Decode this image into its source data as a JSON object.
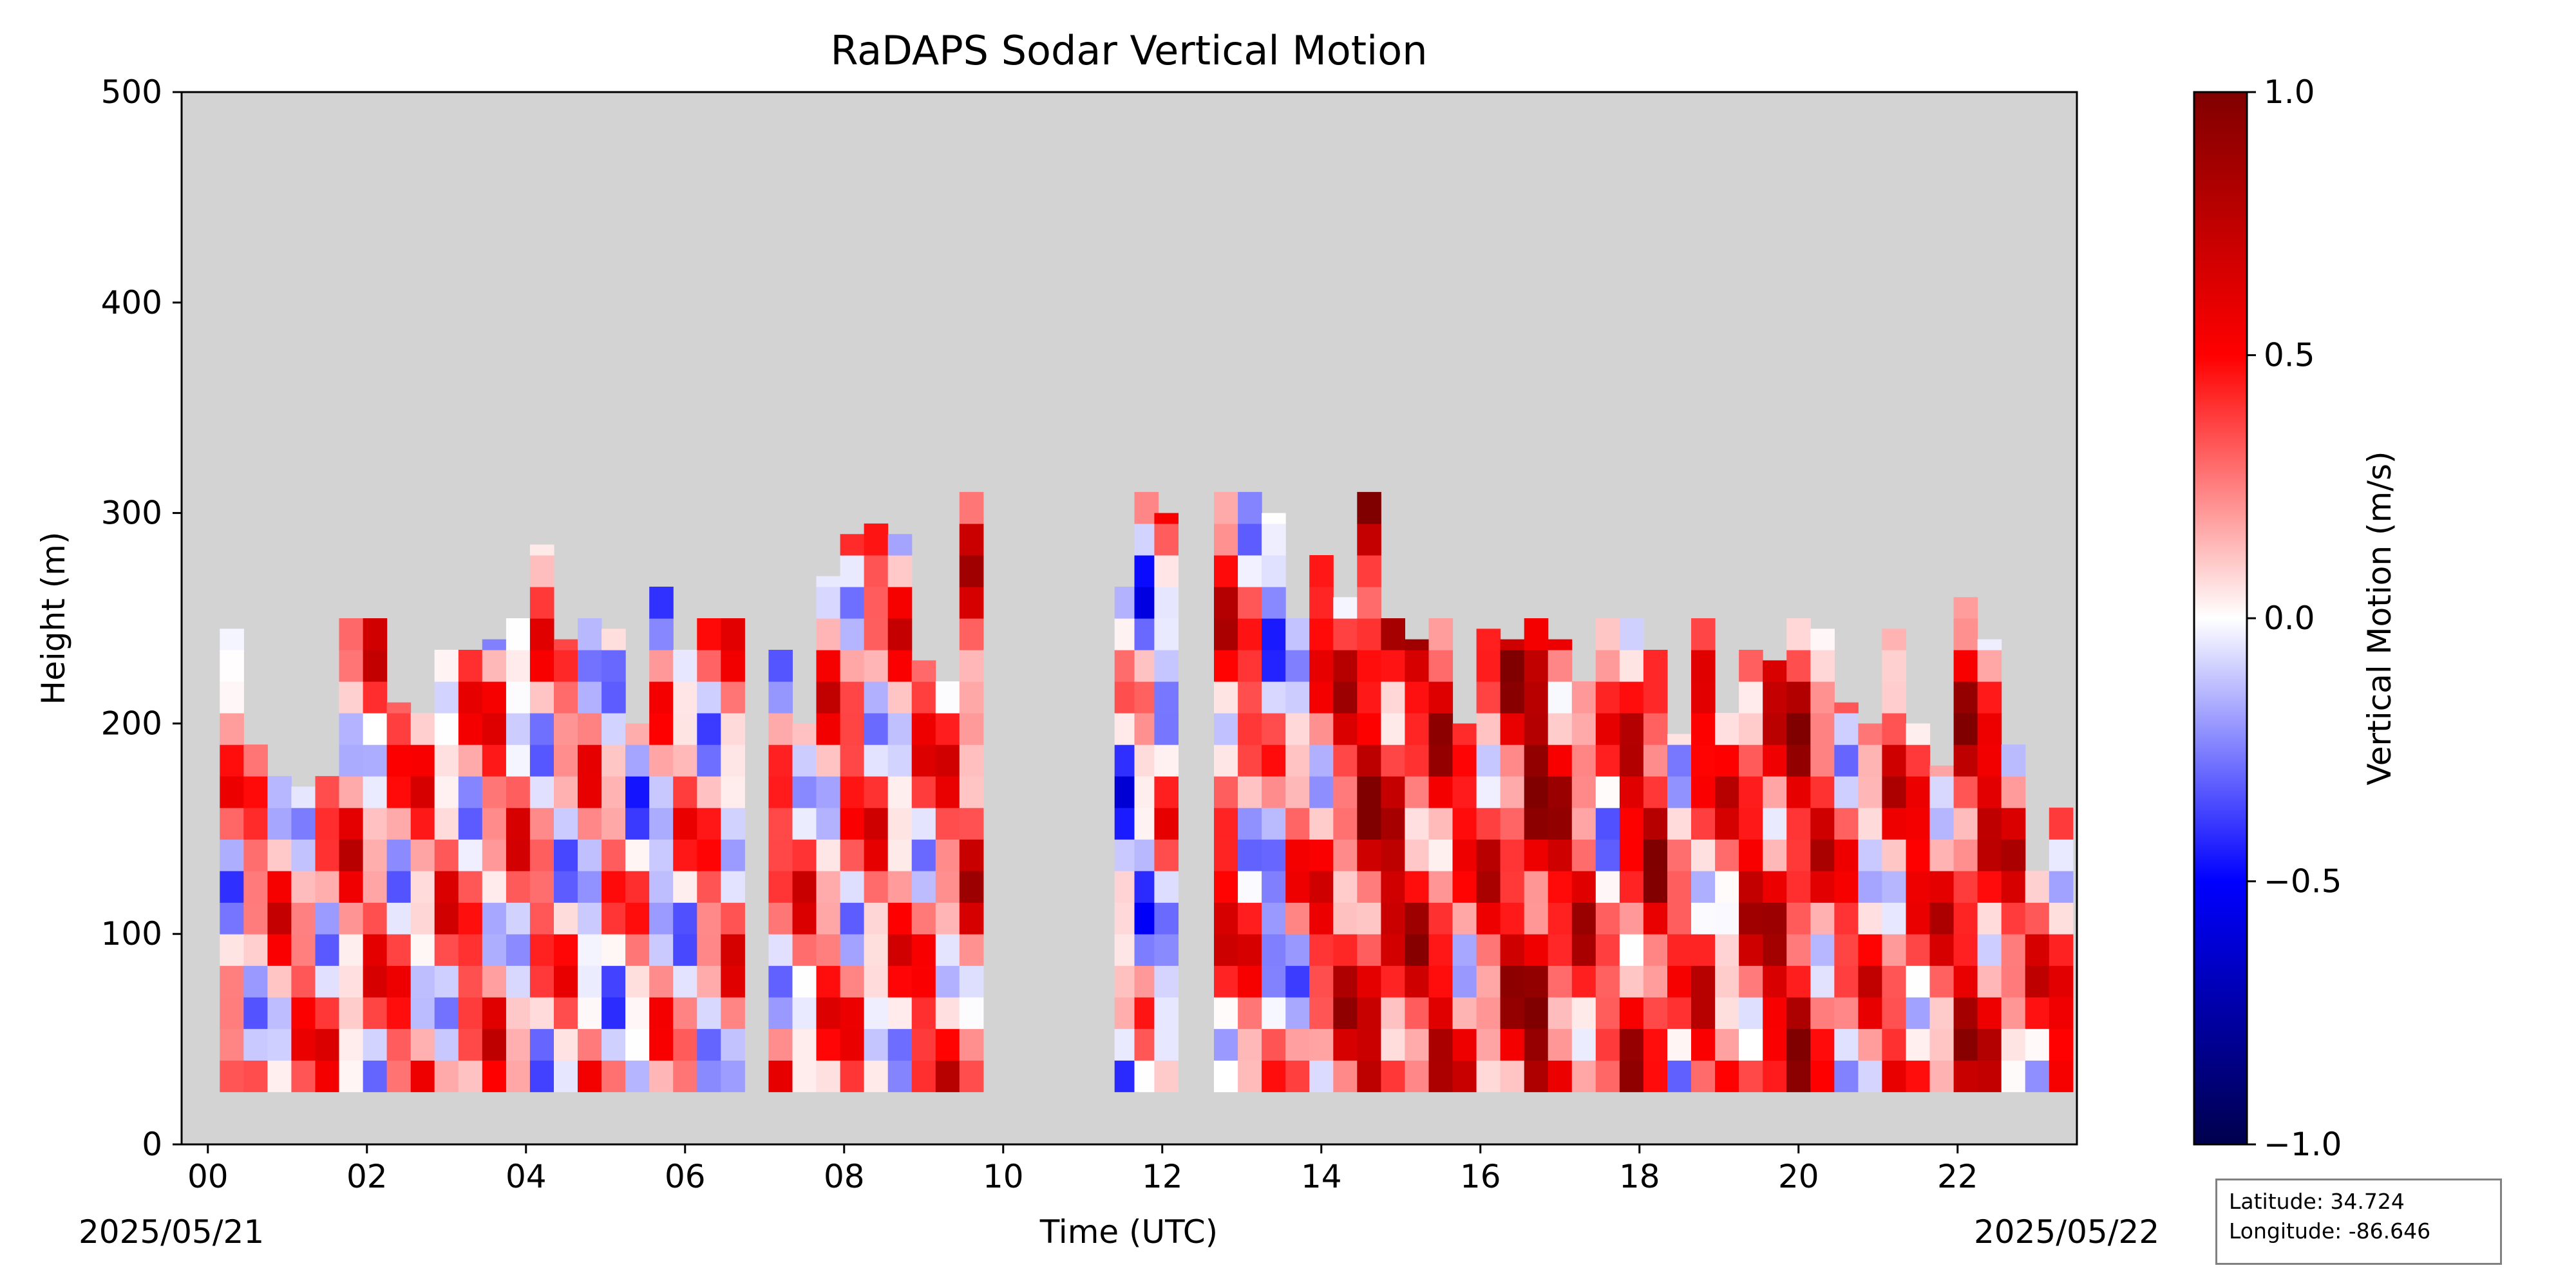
{
  "chart_data": {
    "type": "heatmap",
    "title": "RaDAPS Sodar Vertical Motion",
    "xlabel": "Time (UTC)",
    "ylabel": "Height (m)",
    "xlim": [
      -0.33,
      23.5
    ],
    "ylim": [
      0,
      500
    ],
    "x_ticks": [
      "00",
      "02",
      "04",
      "06",
      "08",
      "10",
      "12",
      "14",
      "16",
      "18",
      "20",
      "22"
    ],
    "y_ticks": [
      "0",
      "100",
      "200",
      "300",
      "400",
      "500"
    ],
    "start_date": "2025/05/21",
    "end_date": "2025/05/22",
    "colorbar": {
      "label": "Vertical Motion (m/s)",
      "range": [
        -1.0,
        1.0
      ],
      "ticks": [
        "−1.0",
        "−0.5",
        "0.0",
        "0.5",
        "1.0"
      ],
      "colormap": "seismic"
    },
    "missing_color": "#d3d3d3",
    "height_min_m": 25,
    "data_gaps_utc": [
      [
        9.8,
        11.5
      ],
      [
        12.1,
        12.6
      ]
    ],
    "profiles": [
      {
        "t": 0.3,
        "top": 245,
        "w_mean": 0.1
      },
      {
        "t": 0.6,
        "top": 190,
        "w_mean": 0.15
      },
      {
        "t": 0.9,
        "top": 175,
        "w_mean": 0.18
      },
      {
        "t": 1.2,
        "top": 170,
        "w_mean": 0.2
      },
      {
        "t": 1.5,
        "top": 175,
        "w_mean": 0.2
      },
      {
        "t": 1.8,
        "top": 250,
        "w_mean": 0.25
      },
      {
        "t": 2.1,
        "top": 250,
        "w_mean": 0.22
      },
      {
        "t": 2.4,
        "top": 210,
        "w_mean": 0.2
      },
      {
        "t": 2.7,
        "top": 205,
        "w_mean": 0.18
      },
      {
        "t": 3.0,
        "top": 235,
        "w_mean": 0.2
      },
      {
        "t": 3.3,
        "top": 235,
        "w_mean": 0.2
      },
      {
        "t": 3.6,
        "top": 240,
        "w_mean": 0.22
      },
      {
        "t": 3.9,
        "top": 250,
        "w_mean": 0.18
      },
      {
        "t": 4.2,
        "top": 285,
        "w_mean": 0.15
      },
      {
        "t": 4.5,
        "top": 240,
        "w_mean": 0.1
      },
      {
        "t": 4.8,
        "top": 250,
        "w_mean": 0.1
      },
      {
        "t": 5.1,
        "top": 245,
        "w_mean": 0.1
      },
      {
        "t": 5.4,
        "top": 200,
        "w_mean": 0.05
      },
      {
        "t": 5.7,
        "top": 265,
        "w_mean": 0.05
      },
      {
        "t": 6.0,
        "top": 235,
        "w_mean": 0.12
      },
      {
        "t": 6.3,
        "top": 250,
        "w_mean": 0.15
      },
      {
        "t": 6.6,
        "top": 250,
        "w_mean": 0.15
      },
      {
        "t": 6.9,
        "top": 0,
        "w_mean": 0
      },
      {
        "t": 7.2,
        "top": 235,
        "w_mean": 0.2
      },
      {
        "t": 7.5,
        "top": 200,
        "w_mean": 0.2
      },
      {
        "t": 7.8,
        "top": 270,
        "w_mean": 0.2
      },
      {
        "t": 8.1,
        "top": 290,
        "w_mean": 0.22
      },
      {
        "t": 8.4,
        "top": 295,
        "w_mean": 0.2
      },
      {
        "t": 8.7,
        "top": 290,
        "w_mean": 0.18
      },
      {
        "t": 9.0,
        "top": 230,
        "w_mean": 0.25
      },
      {
        "t": 9.3,
        "top": 220,
        "w_mean": 0.25
      },
      {
        "t": 9.6,
        "top": 310,
        "w_mean": 0.35
      },
      {
        "t": 11.55,
        "top": 265,
        "w_mean": -0.1
      },
      {
        "t": 11.8,
        "top": 310,
        "w_mean": -0.05
      },
      {
        "t": 12.05,
        "top": 300,
        "w_mean": 0.05
      },
      {
        "t": 12.8,
        "top": 310,
        "w_mean": 0.35
      },
      {
        "t": 13.1,
        "top": 310,
        "w_mean": 0.2
      },
      {
        "t": 13.4,
        "top": 300,
        "w_mean": -0.05
      },
      {
        "t": 13.7,
        "top": 250,
        "w_mean": 0.15
      },
      {
        "t": 14.0,
        "top": 280,
        "w_mean": 0.3
      },
      {
        "t": 14.3,
        "top": 260,
        "w_mean": 0.4
      },
      {
        "t": 14.6,
        "top": 310,
        "w_mean": 0.6
      },
      {
        "t": 14.9,
        "top": 250,
        "w_mean": 0.55
      },
      {
        "t": 15.2,
        "top": 240,
        "w_mean": 0.45
      },
      {
        "t": 15.5,
        "top": 250,
        "w_mean": 0.45
      },
      {
        "t": 15.8,
        "top": 200,
        "w_mean": 0.3
      },
      {
        "t": 16.1,
        "top": 245,
        "w_mean": 0.35
      },
      {
        "t": 16.4,
        "top": 240,
        "w_mean": 0.5
      },
      {
        "t": 16.7,
        "top": 250,
        "w_mean": 0.7
      },
      {
        "t": 17.0,
        "top": 240,
        "w_mean": 0.5
      },
      {
        "t": 17.3,
        "top": 220,
        "w_mean": 0.4
      },
      {
        "t": 17.6,
        "top": 250,
        "w_mean": 0.15
      },
      {
        "t": 17.9,
        "top": 250,
        "w_mean": 0.45
      },
      {
        "t": 18.2,
        "top": 235,
        "w_mean": 0.55
      },
      {
        "t": 18.5,
        "top": 195,
        "w_mean": 0.2
      },
      {
        "t": 18.8,
        "top": 250,
        "w_mean": 0.35
      },
      {
        "t": 19.1,
        "top": 205,
        "w_mean": 0.25
      },
      {
        "t": 19.4,
        "top": 235,
        "w_mean": 0.45
      },
      {
        "t": 19.7,
        "top": 230,
        "w_mean": 0.5
      },
      {
        "t": 20.0,
        "top": 250,
        "w_mean": 0.55
      },
      {
        "t": 20.3,
        "top": 245,
        "w_mean": 0.35
      },
      {
        "t": 20.6,
        "top": 210,
        "w_mean": 0.25
      },
      {
        "t": 20.9,
        "top": 200,
        "w_mean": 0.2
      },
      {
        "t": 21.2,
        "top": 245,
        "w_mean": 0.3
      },
      {
        "t": 21.5,
        "top": 200,
        "w_mean": 0.35
      },
      {
        "t": 21.8,
        "top": 180,
        "w_mean": 0.3
      },
      {
        "t": 22.1,
        "top": 260,
        "w_mean": 0.5
      },
      {
        "t": 22.4,
        "top": 240,
        "w_mean": 0.45
      },
      {
        "t": 22.7,
        "top": 190,
        "w_mean": 0.35
      },
      {
        "t": 23.0,
        "top": 130,
        "w_mean": 0.25
      },
      {
        "t": 23.3,
        "top": 160,
        "w_mean": 0.35
      }
    ]
  },
  "info_box": {
    "latitude": "Latitude: 34.724",
    "longitude": "Longitude: -86.646"
  }
}
